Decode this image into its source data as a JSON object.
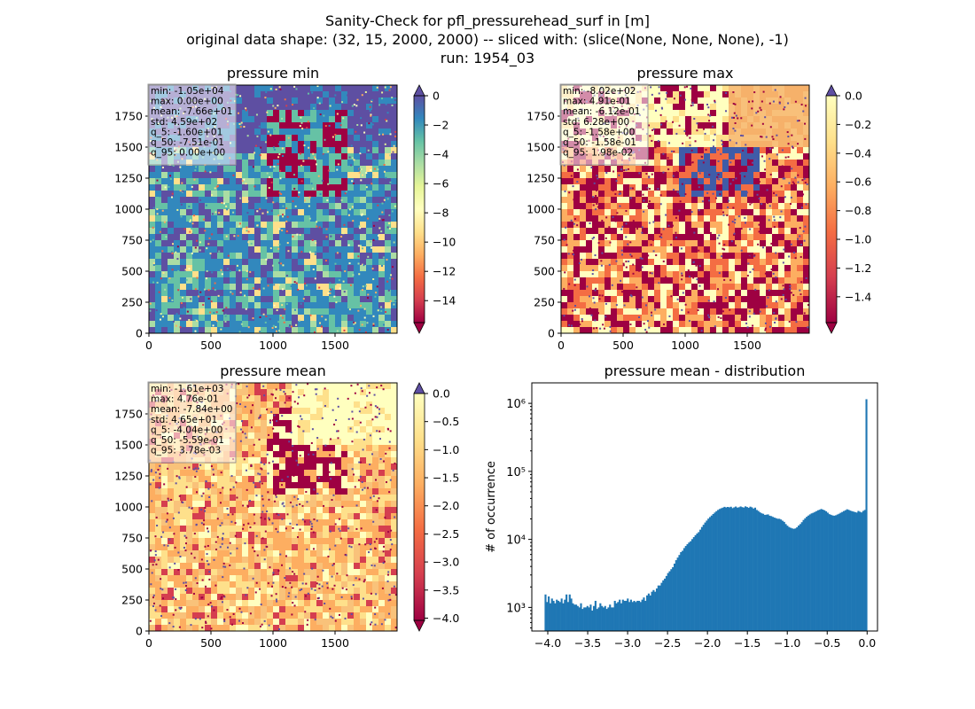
{
  "figure": {
    "title_lines": [
      "Sanity-Check for pfl_pressurehead_surf in [m]",
      "original data shape: (32, 15, 2000, 2000) -- sliced with: (slice(None, None, None), -1)",
      "run: 1954_03"
    ]
  },
  "chart_data": [
    {
      "type": "heatmap",
      "title": "pressure min",
      "xlim": [
        0,
        2000
      ],
      "ylim": [
        0,
        2000
      ],
      "xticks": [
        "0",
        "500",
        "1000",
        "1500"
      ],
      "yticks": [
        "0",
        "250",
        "500",
        "750",
        "1000",
        "1250",
        "1500",
        "1750"
      ],
      "colormap": "Spectral",
      "colorbar": {
        "range": [
          -15.5,
          0
        ],
        "ticks": [
          "0",
          "−2",
          "−4",
          "−6",
          "−8",
          "−10",
          "−12",
          "−14"
        ],
        "extend": "both"
      },
      "stats": [
        "min: -1.05e+04",
        "max: 0.00e+00",
        "mean: -7.66e+01",
        "std: 4.59e+02",
        "q_5: -1.60e+01",
        "q_50: -7.51e-01",
        "q_95: 0.00e+00"
      ]
    },
    {
      "type": "heatmap",
      "title": "pressure max",
      "xlim": [
        0,
        2000
      ],
      "ylim": [
        0,
        2000
      ],
      "xticks": [
        "0",
        "500",
        "1000",
        "1500"
      ],
      "yticks": [
        "0",
        "250",
        "500",
        "750",
        "1000",
        "1250",
        "1500",
        "1750"
      ],
      "colormap": "Spectral",
      "colorbar": {
        "range": [
          -1.58,
          0
        ],
        "ticks": [
          "0.0",
          "−0.2",
          "−0.4",
          "−0.6",
          "−0.8",
          "−1.0",
          "−1.2",
          "−1.4"
        ],
        "extend": "both"
      },
      "stats": [
        "min: -8.02e+02",
        "max: 4.91e-01",
        "mean: -6.12e-01",
        "std: 6.28e+00",
        "q_5: -1.58e+00",
        "q_50: -1.58e-01",
        "q_95: 1.98e-02"
      ]
    },
    {
      "type": "heatmap",
      "title": "pressure mean",
      "xlim": [
        0,
        2000
      ],
      "ylim": [
        0,
        2000
      ],
      "xticks": [
        "0",
        "500",
        "1000",
        "1500"
      ],
      "yticks": [
        "0",
        "250",
        "500",
        "750",
        "1000",
        "1250",
        "1500",
        "1750"
      ],
      "colormap": "Spectral",
      "colorbar": {
        "range": [
          -4.04,
          0
        ],
        "ticks": [
          "0.0",
          "−0.5",
          "−1.0",
          "−1.5",
          "−2.0",
          "−2.5",
          "−3.0",
          "−3.5",
          "−4.0"
        ],
        "extend": "both"
      },
      "stats": [
        "min: -1.61e+03",
        "max: 4.76e-01",
        "mean: -7.84e+00",
        "std: 4.65e+01",
        "q_5: -4.04e+00",
        "q_50: -5.59e-01",
        "q_95: 3.78e-03"
      ]
    },
    {
      "type": "bar",
      "title": "pressure mean - distribution",
      "ylabel": "# of occurrence",
      "xlabel": "",
      "yscale": "log",
      "xlim": [
        -4.2,
        0.13
      ],
      "ylim": [
        450,
        2000000
      ],
      "xticks": [
        -4.0,
        -3.5,
        -3.0,
        -2.5,
        -2.0,
        -1.5,
        -1.0,
        -0.5,
        0.0
      ],
      "xtick_labels": [
        "−4.0",
        "−3.5",
        "−3.0",
        "−2.5",
        "−2.0",
        "−1.5",
        "−1.0",
        "−0.5",
        "0.0"
      ],
      "yticks": [
        1000,
        10000,
        100000,
        1000000
      ],
      "ytick_labels": [
        "10³",
        "10⁴",
        "10⁵",
        "10⁶"
      ],
      "color": "#1f77b4",
      "bins": {
        "x_start": -4.04,
        "x_end": 0.0,
        "count": 200
      },
      "values": [
        1550,
        1200,
        1450,
        1150,
        1350,
        1250,
        1150,
        1300,
        1250,
        1200,
        1350,
        1150,
        1300,
        1550,
        1200,
        1550,
        1350,
        1150,
        1100,
        1100,
        1050,
        1000,
        1150,
        950,
        1000,
        1000,
        1050,
        1000,
        1100,
        900,
        1050,
        1250,
        950,
        1000,
        1150,
        1050,
        1000,
        1050,
        950,
        1000,
        1100,
        1000,
        1000,
        1250,
        1150,
        1200,
        1300,
        1150,
        1300,
        1250,
        1250,
        1350,
        1200,
        1300,
        1200,
        1250,
        1200,
        1250,
        1250,
        1200,
        1300,
        1400,
        1250,
        1500,
        1600,
        1500,
        1700,
        1800,
        1700,
        1900,
        2100,
        2100,
        2300,
        2500,
        2650,
        2900,
        3200,
        3400,
        3650,
        3900,
        4400,
        4950,
        5400,
        5900,
        6500,
        6800,
        7450,
        8000,
        8500,
        9000,
        9400,
        10100,
        10800,
        11500,
        12200,
        12800,
        13900,
        15200,
        16400,
        17700,
        18900,
        20200,
        21300,
        22400,
        23600,
        24800,
        26000,
        27100,
        28000,
        28700,
        29300,
        30100,
        29500,
        30000,
        29600,
        30200,
        28800,
        29600,
        30400,
        29300,
        29700,
        30500,
        29800,
        29400,
        30600,
        29900,
        29100,
        30300,
        29600,
        28400,
        29300,
        27100,
        26200,
        25000,
        24200,
        23800,
        22900,
        23100,
        23300,
        22300,
        22000,
        21400,
        20900,
        20500,
        20100,
        20100,
        19600,
        18800,
        18100,
        16800,
        15900,
        15200,
        14800,
        14500,
        14300,
        14500,
        15100,
        16000,
        16800,
        17900,
        19300,
        20400,
        21500,
        22400,
        23300,
        24100,
        24600,
        25300,
        26000,
        26800,
        27300,
        28000,
        27400,
        26800,
        25900,
        24700,
        23500,
        23000,
        22500,
        22300,
        22600,
        23200,
        23800,
        24600,
        25300,
        26100,
        26800,
        27700,
        27200,
        26500,
        26000,
        25600,
        25200,
        24800,
        26200,
        25500,
        24900,
        26200,
        27100,
        1150000
      ]
    }
  ]
}
